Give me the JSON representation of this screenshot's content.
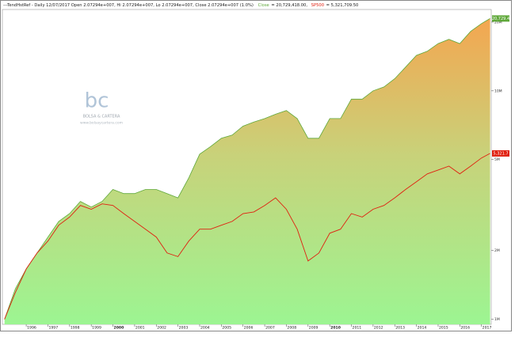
{
  "chart_data": {
    "type": "log-area-line",
    "title": "---TendHstRef - Daily 12/07/2017 Open 2.07294e+007, Hi 2.07294e+007, Lo 2.07294e+007, Close 2.07294e+007 (1.0%)",
    "legend_values": [
      "= 20,729,418.00,",
      "= 5,321,709.50"
    ],
    "watermark": {
      "logo": "bc",
      "name": "BOLSA & CARTERA",
      "url": "www.bolsaycartera.com"
    },
    "log_scale": true,
    "xlim": [
      1994.9,
      2017.45
    ],
    "xticks": [
      1996,
      1997,
      1998,
      1999,
      2000,
      2001,
      2002,
      2003,
      2004,
      2005,
      2006,
      2007,
      2008,
      2009,
      2010,
      2011,
      2012,
      2013,
      2014,
      2015,
      2016,
      2017
    ],
    "ylim": [
      950000,
      22700000
    ],
    "yticks": [
      {
        "value": 1000000,
        "label": "1M"
      },
      {
        "value": 2000000,
        "label": "2M"
      },
      {
        "value": 5000000,
        "label": "5M"
      },
      {
        "value": 10000000,
        "label": "10M"
      },
      {
        "value": 20000000,
        "label": "20M"
      }
    ],
    "x": [
      1995,
      1995.5,
      1996,
      1996.5,
      1997,
      1997.5,
      1998,
      1998.5,
      1999,
      1999.5,
      2000,
      2000.5,
      2001,
      2001.5,
      2002,
      2002.5,
      2003,
      2003.5,
      2004,
      2004.5,
      2005,
      2005.5,
      2006,
      2006.5,
      2007,
      2007.5,
      2008,
      2008.5,
      2009,
      2009.5,
      2010,
      2010.5,
      2011,
      2011.5,
      2012,
      2012.5,
      2013,
      2013.5,
      2014,
      2014.5,
      2015,
      2015.5,
      2016,
      2016.5,
      2017,
      2017.4
    ],
    "series": [
      {
        "name": "Close",
        "color": "#5fa83a",
        "end_label": "20,729.4",
        "values": [
          1000000,
          1360000,
          1660000,
          1950000,
          2290000,
          2680000,
          2900000,
          3280000,
          3100000,
          3280000,
          3700000,
          3550000,
          3550000,
          3700000,
          3700000,
          3550000,
          3400000,
          4160000,
          5280000,
          5700000,
          6200000,
          6400000,
          7000000,
          7300000,
          7560000,
          7900000,
          8200000,
          7560000,
          6200000,
          6200000,
          7560000,
          7560000,
          9200000,
          9200000,
          10000000,
          10400000,
          11300000,
          12700000,
          14300000,
          14900000,
          16100000,
          16800000,
          16100000,
          18200000,
          19700000,
          20729418
        ]
      },
      {
        "name": "SP500",
        "color": "#e02010",
        "end_label": "5,321.7",
        "values": [
          1000000,
          1310000,
          1660000,
          1950000,
          2200000,
          2580000,
          2800000,
          3150000,
          3030000,
          3200000,
          3150000,
          2900000,
          2680000,
          2480000,
          2290000,
          1950000,
          1880000,
          2200000,
          2480000,
          2480000,
          2580000,
          2680000,
          2900000,
          2950000,
          3150000,
          3400000,
          3030000,
          2480000,
          1800000,
          1950000,
          2380000,
          2480000,
          2900000,
          2800000,
          3030000,
          3150000,
          3400000,
          3700000,
          4000000,
          4330000,
          4500000,
          4680000,
          4330000,
          4680000,
          5080000,
          5321709.5
        ]
      }
    ]
  }
}
